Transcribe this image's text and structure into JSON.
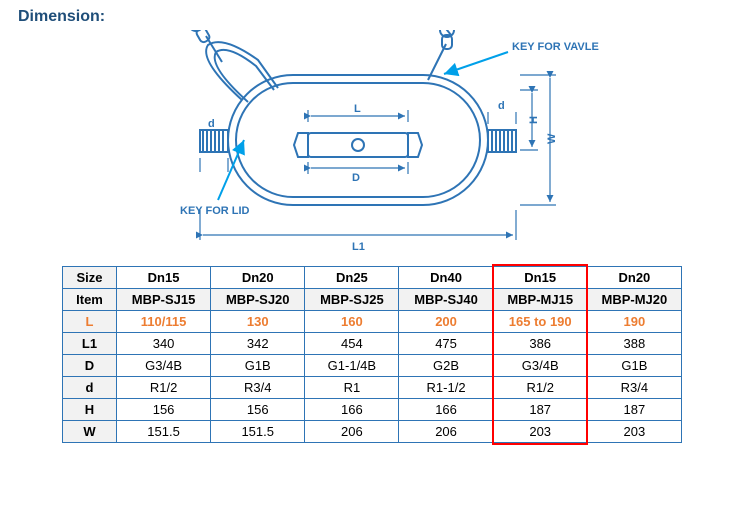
{
  "heading": "Dimension:",
  "heading_color": "#1f4e79",
  "diagram": {
    "labels": {
      "key_for_valve": "KEY FOR VAVLE",
      "key_for_lid": "KEY FOR LID",
      "L": "L",
      "L1": "L1",
      "D": "D",
      "d_left": "d",
      "d_right": "d",
      "H": "H",
      "W": "W"
    },
    "stroke": "#2e74b5",
    "arrow": "#00a0e9",
    "label_fontsize": 11,
    "label_font_bold": true
  },
  "table": {
    "row_headers": [
      "Size",
      "Item",
      "L",
      "L1",
      "D",
      "d",
      "H",
      "W"
    ],
    "columns": [
      "Dn15",
      "Dn20",
      "Dn25",
      "Dn40",
      "Dn15",
      "Dn20"
    ],
    "items": [
      "MBP-SJ15",
      "MBP-SJ20",
      "MBP-SJ25",
      "MBP-SJ40",
      "MBP-MJ15",
      "MBP-MJ20"
    ],
    "L": [
      "110/115",
      "130",
      "160",
      "200",
      "165 to 190",
      "190"
    ],
    "L1": [
      "340",
      "342",
      "454",
      "475",
      "386",
      "388"
    ],
    "D": [
      "G3/4B",
      "G1B",
      "G1-1/4B",
      "G2B",
      "G3/4B",
      "G1B"
    ],
    "d": [
      "R1/2",
      "R3/4",
      "R1",
      "R1-1/2",
      "R1/2",
      "R3/4"
    ],
    "H": [
      "156",
      "156",
      "166",
      "166",
      "187",
      "187"
    ],
    "W": [
      "151.5",
      "151.5",
      "206",
      "206",
      "203",
      "203"
    ],
    "highlight_col_index": 4,
    "border_color": "#2e74b5",
    "l_row_color": "#ed7d31",
    "highlight_color": "#ff0000"
  }
}
